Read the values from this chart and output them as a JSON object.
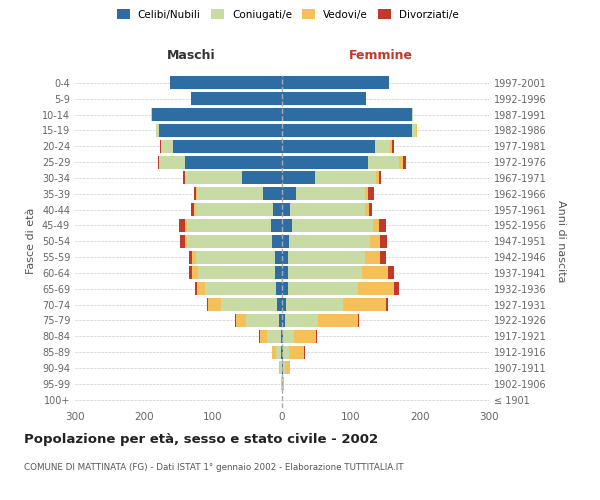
{
  "age_groups": [
    "0-4",
    "5-9",
    "10-14",
    "15-19",
    "20-24",
    "25-29",
    "30-34",
    "35-39",
    "40-44",
    "45-49",
    "50-54",
    "55-59",
    "60-64",
    "65-69",
    "70-74",
    "75-79",
    "80-84",
    "85-89",
    "90-94",
    "95-99",
    "100+"
  ],
  "birth_years": [
    "1997-2001",
    "1992-1996",
    "1987-1991",
    "1982-1986",
    "1977-1981",
    "1972-1976",
    "1967-1971",
    "1962-1966",
    "1957-1961",
    "1952-1956",
    "1947-1951",
    "1942-1946",
    "1937-1941",
    "1932-1936",
    "1927-1931",
    "1922-1926",
    "1917-1921",
    "1912-1916",
    "1907-1911",
    "1902-1906",
    "≤ 1901"
  ],
  "maschi": {
    "celibi": [
      162,
      132,
      188,
      178,
      158,
      140,
      58,
      28,
      13,
      16,
      15,
      10,
      10,
      9,
      7,
      4,
      2,
      1,
      0,
      0,
      0
    ],
    "coniugati": [
      0,
      0,
      2,
      5,
      18,
      38,
      82,
      95,
      112,
      122,
      122,
      115,
      112,
      102,
      82,
      48,
      20,
      8,
      3,
      1,
      0
    ],
    "vedovi": [
      0,
      0,
      0,
      0,
      0,
      0,
      1,
      1,
      2,
      2,
      3,
      5,
      8,
      12,
      18,
      15,
      10,
      5,
      2,
      0,
      0
    ],
    "divorziati": [
      0,
      0,
      0,
      0,
      1,
      2,
      2,
      3,
      5,
      10,
      8,
      5,
      5,
      3,
      2,
      1,
      1,
      0,
      0,
      0,
      0
    ]
  },
  "femmine": {
    "nubili": [
      155,
      122,
      188,
      188,
      135,
      125,
      48,
      20,
      12,
      14,
      10,
      8,
      8,
      8,
      6,
      4,
      2,
      2,
      1,
      0,
      0
    ],
    "coniugate": [
      0,
      0,
      2,
      6,
      22,
      45,
      88,
      100,
      108,
      118,
      118,
      112,
      108,
      102,
      82,
      48,
      15,
      8,
      3,
      1,
      0
    ],
    "vedove": [
      0,
      0,
      0,
      1,
      3,
      5,
      5,
      5,
      6,
      8,
      14,
      22,
      38,
      52,
      62,
      58,
      32,
      22,
      8,
      2,
      0
    ],
    "divorziate": [
      0,
      0,
      0,
      0,
      2,
      5,
      3,
      8,
      5,
      10,
      10,
      8,
      8,
      8,
      3,
      2,
      1,
      1,
      0,
      0,
      0
    ]
  },
  "colors": {
    "celibi": "#2e6da4",
    "coniugati": "#c8dba5",
    "vedovi": "#f5bf5a",
    "divorziati": "#c0392b"
  },
  "xlim": 300,
  "title": "Popolazione per età, sesso e stato civile - 2002",
  "subtitle": "COMUNE DI MATTINATA (FG) - Dati ISTAT 1° gennaio 2002 - Elaborazione TUTTITALIA.IT",
  "ylabel_left": "Fasce di età",
  "ylabel_right": "Anni di nascita",
  "xlabel_left": "Maschi",
  "xlabel_right": "Femmine",
  "bg_color": "#ffffff",
  "grid_color": "#cccccc"
}
